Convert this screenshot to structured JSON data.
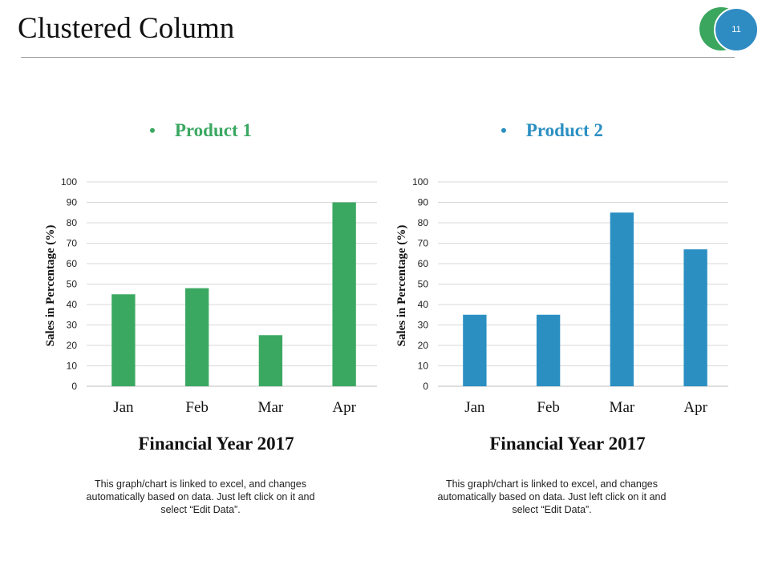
{
  "slide": {
    "title": "Clustered Column",
    "page_number": "11",
    "badge_colors": {
      "back": "#3aa65e",
      "front": "#2f8cc3"
    }
  },
  "chart_data": [
    {
      "type": "bar",
      "title": "Product 1",
      "bullet": "•",
      "color": "#3ba862",
      "categories": [
        "Jan",
        "Feb",
        "Mar",
        "Apr"
      ],
      "series": [
        {
          "name": "Product 1",
          "values": [
            45,
            48,
            25,
            90
          ]
        }
      ],
      "xlabel": "Financial Year 2017",
      "ylabel": "Sales in Percentage (%)",
      "ylim": [
        0,
        100
      ],
      "yticks": [
        "0",
        "10",
        "20",
        "30",
        "40",
        "50",
        "60",
        "70",
        "80",
        "90",
        "100"
      ],
      "grid": true,
      "note_lines": [
        "This graph/chart is linked to excel, and changes",
        "automatically based on data. Just left click on it and",
        "select “Edit Data”."
      ]
    },
    {
      "type": "bar",
      "title": "Product 2",
      "bullet": "•",
      "color": "#2b8fc2",
      "categories": [
        "Jan",
        "Feb",
        "Mar",
        "Apr"
      ],
      "series": [
        {
          "name": "Product 2",
          "values": [
            35,
            35,
            85,
            67
          ]
        }
      ],
      "xlabel": "Financial Year 2017",
      "ylabel": "Sales in Percentage (%)",
      "ylim": [
        0,
        100
      ],
      "yticks": [
        "0",
        "10",
        "20",
        "30",
        "40",
        "50",
        "60",
        "70",
        "80",
        "90",
        "100"
      ],
      "grid": true,
      "note_lines": [
        "This graph/chart is linked to excel, and changes",
        "automatically based on data. Just left click on it and",
        "select “Edit Data”."
      ]
    }
  ]
}
